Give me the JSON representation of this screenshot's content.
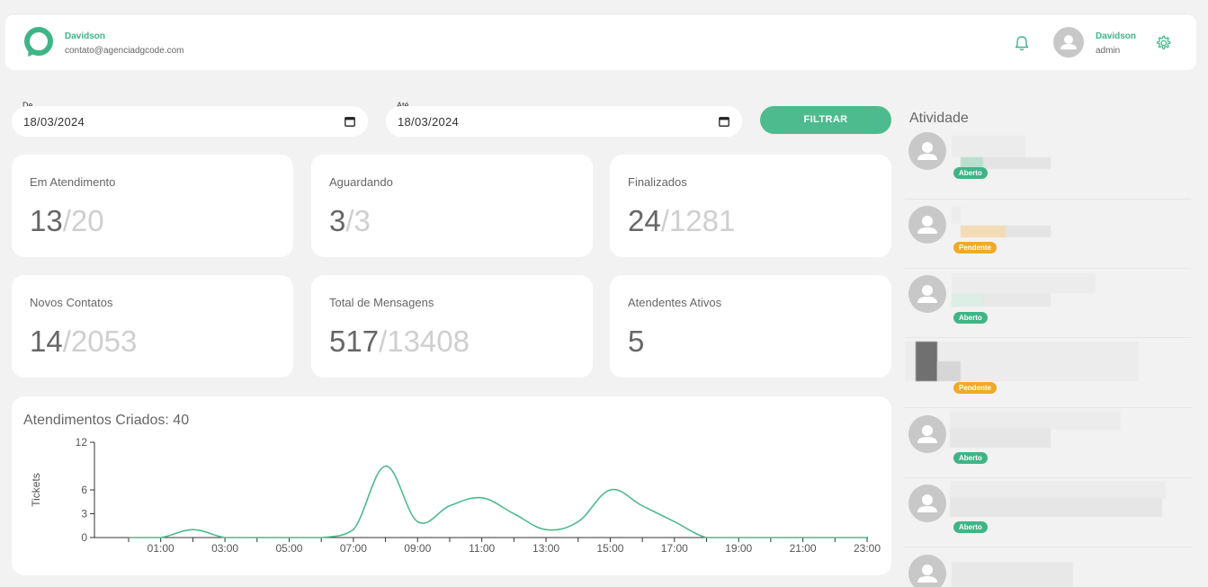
{
  "header": {
    "company_name": "Davidson",
    "company_email": "contato@agenciadgcode.com",
    "user_name": "Davidson",
    "user_role": "admin",
    "accent_color": "#3fb587"
  },
  "filters": {
    "from_label": "De",
    "from_value": "18/03/2024",
    "to_label": "Até",
    "to_value": "18/03/2024",
    "button_label": "FILTRAR"
  },
  "cards": [
    {
      "title": "Em Atendimento",
      "value": "13",
      "total": "/20"
    },
    {
      "title": "Aguardando",
      "value": "3",
      "total": "/3"
    },
    {
      "title": "Finalizados",
      "value": "24",
      "total": "/1281"
    },
    {
      "title": "Novos Contatos",
      "value": "14",
      "total": "/2053"
    },
    {
      "title": "Total de Mensagens",
      "value": "517",
      "total": "/13408"
    },
    {
      "title": "Atendentes Ativos",
      "value": "5",
      "total": ""
    }
  ],
  "chart_data": {
    "type": "line",
    "title": "Atendimentos Criados: 40",
    "xlabel": "",
    "ylabel": "Tickets",
    "x": [
      "00:00",
      "01:00",
      "02:00",
      "03:00",
      "04:00",
      "05:00",
      "06:00",
      "07:00",
      "08:00",
      "09:00",
      "10:00",
      "11:00",
      "12:00",
      "13:00",
      "14:00",
      "15:00",
      "16:00",
      "17:00",
      "18:00",
      "19:00",
      "20:00",
      "21:00",
      "22:00",
      "23:00"
    ],
    "x_tick_labels": [
      "01:00",
      "03:00",
      "05:00",
      "07:00",
      "09:00",
      "11:00",
      "13:00",
      "15:00",
      "17:00",
      "19:00",
      "21:00",
      "23:00"
    ],
    "y_ticks": [
      0,
      3,
      6,
      12
    ],
    "values": [
      0,
      0,
      1,
      0,
      0,
      0,
      0,
      1,
      9,
      2,
      4,
      5,
      3,
      1,
      2,
      6,
      4,
      2,
      0,
      0,
      0,
      0,
      0,
      0
    ],
    "ylim": [
      0,
      12
    ],
    "color": "#4dbb8d",
    "grid": false
  },
  "activity": {
    "title": "Atividade",
    "items": [
      {
        "status": "Aberto"
      },
      {
        "status": "Pendente"
      },
      {
        "status": "Aberto"
      },
      {
        "status": "Pendente"
      },
      {
        "status": "Aberto"
      },
      {
        "status": "Aberto"
      },
      {
        "status": ""
      }
    ]
  }
}
